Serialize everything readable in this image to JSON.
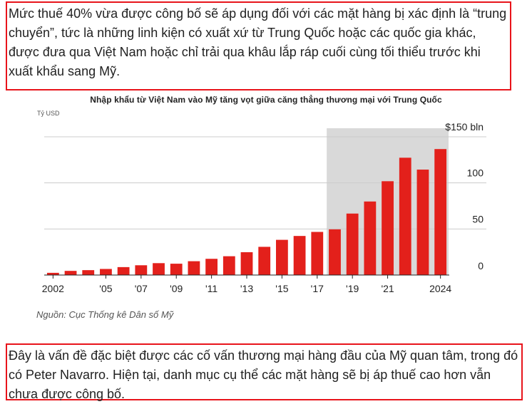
{
  "article": {
    "paragraph_1": "Mức thuế 40% vừa được công bố sẽ áp dụng đối với các mặt hàng bị xác định là “trung chuyển”, tức là những linh kiện có xuất xứ từ Trung Quốc hoặc các quốc gia khác, được đưa qua Việt Nam hoặc chỉ trải qua khâu lắp ráp cuối cùng tối thiểu trước khi xuất khẩu sang Mỹ.",
    "paragraph_2": "Đây là vấn đề đặc biệt được các cố vấn thương mại hàng đầu của Mỹ quan tâm, trong đó có Peter Navarro. Hiện tại, danh mục cụ thể các mặt hàng sẽ bị áp thuế cao hơn vẫn chưa được công bố.",
    "source": "Nguồn: Cục Thống kê Dân số Mỹ"
  },
  "colors": {
    "bar": "#e3201b",
    "highlight": "#d9d9d9",
    "grid": "#cccccc",
    "box_border": "#e8141b"
  },
  "chart_data": {
    "type": "bar",
    "title": "Nhập khẩu từ Việt Nam vào Mỹ tăng vọt giữa căng thẳng thương mại với Trung Quốc",
    "ylabel": "Tỷ USD",
    "xlabel": "",
    "categories": [
      2002,
      2003,
      2004,
      2005,
      2006,
      2007,
      2008,
      2009,
      2010,
      2011,
      2012,
      2013,
      2014,
      2015,
      2016,
      2017,
      2018,
      2019,
      2020,
      2021,
      2022,
      2023,
      2024
    ],
    "values": [
      2.4,
      4.5,
      5.3,
      6.6,
      8.6,
      10.6,
      12.9,
      12.3,
      15.0,
      17.6,
      20.4,
      24.8,
      30.6,
      38.2,
      42.4,
      46.8,
      49.6,
      66.7,
      79.8,
      101.8,
      127.3,
      114.4,
      136.7
    ],
    "x_tick_labels": [
      "2002",
      "'05",
      "'07",
      "'09",
      "'11",
      "'13",
      "'15",
      "'17",
      "'19",
      "'21",
      "2024"
    ],
    "x_tick_years": [
      2002,
      2005,
      2007,
      2009,
      2011,
      2013,
      2015,
      2017,
      2019,
      2021,
      2024
    ],
    "y_tick_labels": [
      "0",
      "50",
      "100",
      "$150 bln"
    ],
    "y_tick_values": [
      0,
      50,
      100,
      150
    ],
    "ylim": [
      0,
      150
    ],
    "highlight_range": [
      2018,
      2024
    ],
    "grid": true
  }
}
